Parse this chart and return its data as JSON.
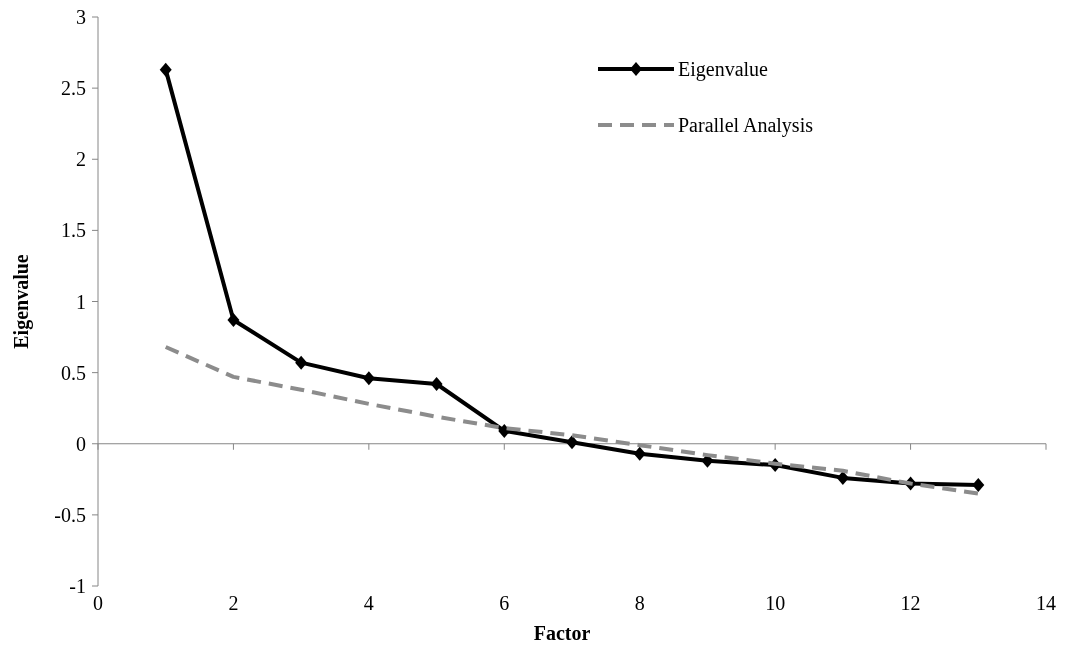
{
  "chart_data": {
    "type": "line",
    "xlabel": "Factor",
    "ylabel": "Eigenvalue",
    "x": [
      1,
      2,
      3,
      4,
      5,
      6,
      7,
      8,
      9,
      10,
      11,
      12,
      13
    ],
    "series": [
      {
        "name": "Eigenvalue",
        "color": "#000000",
        "marker": "diamond",
        "line_style": "solid",
        "values": [
          2.63,
          0.87,
          0.57,
          0.46,
          0.42,
          0.09,
          0.01,
          -0.07,
          -0.12,
          -0.15,
          -0.24,
          -0.28,
          -0.29
        ]
      },
      {
        "name": "Parallel Analysis",
        "color": "#8c8c8c",
        "marker": "none",
        "line_style": "dashed",
        "values": [
          0.68,
          0.47,
          0.38,
          0.28,
          0.19,
          0.11,
          0.06,
          -0.01,
          -0.08,
          -0.14,
          -0.19,
          -0.28,
          -0.35
        ]
      }
    ],
    "xlim": [
      0,
      14
    ],
    "xticks": [
      0,
      2,
      4,
      6,
      8,
      10,
      12,
      14
    ],
    "ylim": [
      -1,
      3
    ],
    "yticks": [
      -1,
      -0.5,
      0,
      0.5,
      1,
      1.5,
      2,
      2.5,
      3
    ],
    "legend": "top right"
  }
}
